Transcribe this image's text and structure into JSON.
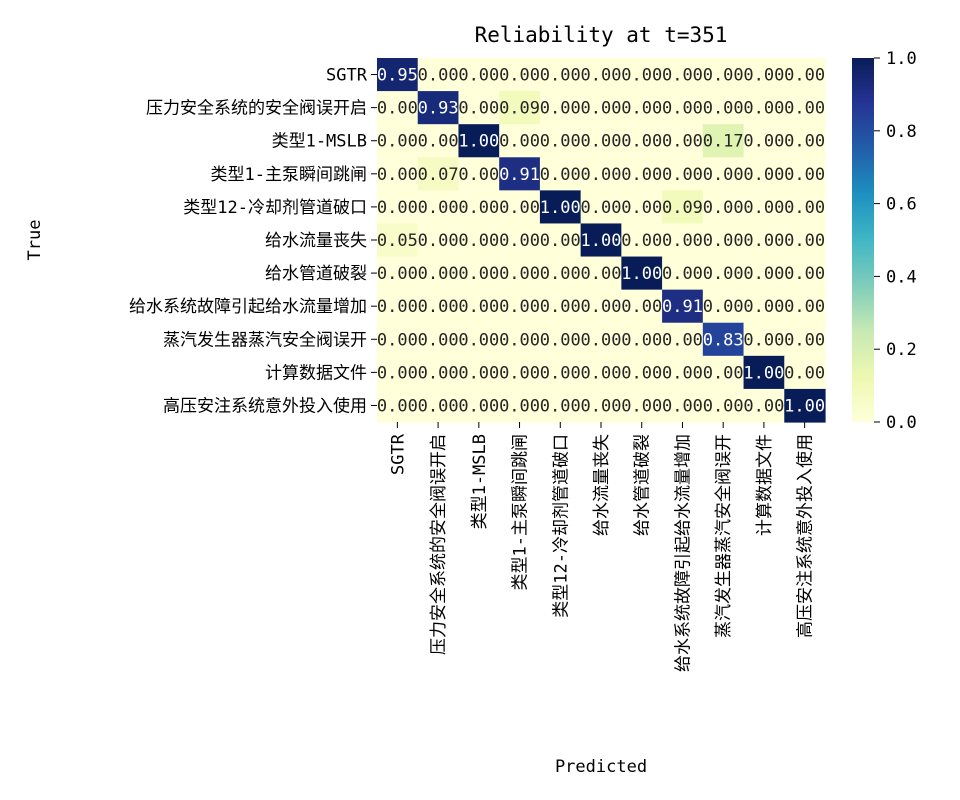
{
  "chart_data": {
    "type": "heatmap",
    "title": "Reliability at t=351",
    "xlabel": "Predicted",
    "ylabel": "True",
    "row_labels": [
      "SGTR",
      "压力安全系统的安全阀误开启",
      "类型1-MSLB",
      "类型1-主泵瞬间跳闸",
      "类型12-冷却剂管道破口",
      "给水流量丧失",
      "给水管道破裂",
      "给水系统故障引起给水流量增加",
      "蒸汽发生器蒸汽安全阀误开",
      "计算数据文件",
      "高压安注系统意外投入使用"
    ],
    "col_labels": [
      "SGTR",
      "压力安全系统的安全阀误开启",
      "类型1-MSLB",
      "类型1-主泵瞬间跳闸",
      "类型12-冷却剂管道破口",
      "给水流量丧失",
      "给水管道破裂",
      "给水系统故障引起给水流量增加",
      "蒸汽发生器蒸汽安全阀误开",
      "计算数据文件",
      "高压安注系统意外投入使用"
    ],
    "values": [
      [
        0.95,
        0.0,
        0.0,
        0.0,
        0.0,
        0.0,
        0.0,
        0.0,
        0.0,
        0.0,
        0.0
      ],
      [
        0.0,
        0.93,
        0.0,
        0.09,
        0.0,
        0.0,
        0.0,
        0.0,
        0.0,
        0.0,
        0.0
      ],
      [
        0.0,
        0.0,
        1.0,
        0.0,
        0.0,
        0.0,
        0.0,
        0.0,
        0.17,
        0.0,
        0.0
      ],
      [
        0.0,
        0.07,
        0.0,
        0.91,
        0.0,
        0.0,
        0.0,
        0.0,
        0.0,
        0.0,
        0.0
      ],
      [
        0.0,
        0.0,
        0.0,
        0.0,
        1.0,
        0.0,
        0.0,
        0.09,
        0.0,
        0.0,
        0.0
      ],
      [
        0.05,
        0.0,
        0.0,
        0.0,
        0.0,
        1.0,
        0.0,
        0.0,
        0.0,
        0.0,
        0.0
      ],
      [
        0.0,
        0.0,
        0.0,
        0.0,
        0.0,
        0.0,
        1.0,
        0.0,
        0.0,
        0.0,
        0.0
      ],
      [
        0.0,
        0.0,
        0.0,
        0.0,
        0.0,
        0.0,
        0.0,
        0.91,
        0.0,
        0.0,
        0.0
      ],
      [
        0.0,
        0.0,
        0.0,
        0.0,
        0.0,
        0.0,
        0.0,
        0.0,
        0.83,
        0.0,
        0.0
      ],
      [
        0.0,
        0.0,
        0.0,
        0.0,
        0.0,
        0.0,
        0.0,
        0.0,
        0.0,
        1.0,
        0.0
      ],
      [
        0.0,
        0.0,
        0.0,
        0.0,
        0.0,
        0.0,
        0.0,
        0.0,
        0.0,
        0.0,
        1.0
      ]
    ],
    "value_format": "0.00",
    "colormap": "YlGnBu",
    "colorbar": {
      "min": 0.0,
      "max": 1.0,
      "ticks": [
        "0.0",
        "0.2",
        "0.4",
        "0.6",
        "0.8",
        "1.0"
      ]
    },
    "colors": {
      "low": "#ffffd9",
      "high": "#081d58",
      "light_text": "#ffffff",
      "dark_text": "#262626"
    }
  }
}
